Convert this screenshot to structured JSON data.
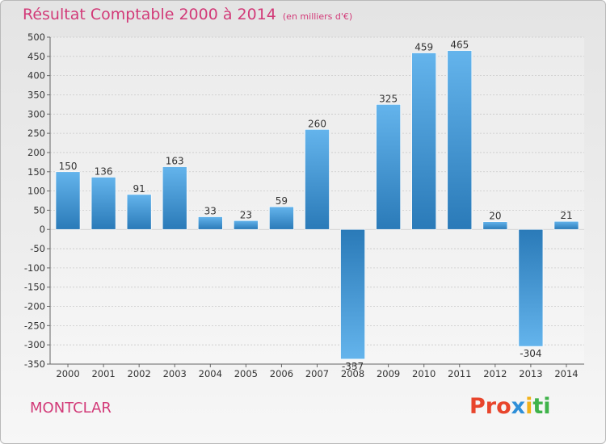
{
  "header": {
    "title": "Résultat Comptable 2000 à 2014",
    "unit": "(en milliers d'€)"
  },
  "footer": {
    "city": "MONTCLAR",
    "logo": [
      "Pro",
      "x",
      "i",
      "ti"
    ]
  },
  "colors": {
    "title": "#d23a78",
    "bar_light": "#64b4ec",
    "bar_dark": "#2a7ab8"
  },
  "chart_data": {
    "type": "bar",
    "title": "Résultat Comptable 2000 à 2014",
    "subtitle": "(en milliers d'€)",
    "xlabel": "",
    "ylabel": "",
    "categories": [
      "2000",
      "2001",
      "2002",
      "2003",
      "2004",
      "2005",
      "2006",
      "2007",
      "2008",
      "2009",
      "2010",
      "2011",
      "2012",
      "2013",
      "2014"
    ],
    "values": [
      150,
      136,
      91,
      163,
      33,
      23,
      59,
      260,
      -337,
      325,
      459,
      465,
      20,
      -304,
      21
    ],
    "labels": [
      "150",
      "136",
      "91",
      "163",
      "33",
      "23",
      "59",
      "260",
      "-337",
      "325",
      "459",
      "465",
      "20",
      "-304",
      "21"
    ],
    "ylim": [
      -350,
      500
    ],
    "yticks": [
      500,
      450,
      400,
      350,
      300,
      250,
      200,
      150,
      100,
      50,
      0,
      -50,
      -100,
      -150,
      -200,
      -250,
      -300,
      -350
    ],
    "grid": true,
    "legend": "none"
  }
}
